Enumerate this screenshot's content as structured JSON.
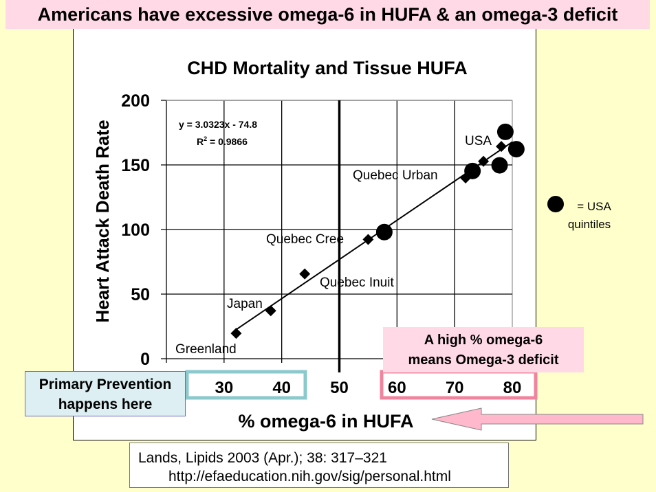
{
  "headline": "Americans have excessive omega-6 in HUFA & an omega-3 deficit",
  "chart_data": {
    "type": "scatter",
    "title": "CHD Mortality and Tissue HUFA",
    "xlabel": "% omega-6 in HUFA",
    "ylabel": "Heart Attack Death Rate",
    "xlim": [
      20,
      80
    ],
    "ylim": [
      0,
      200
    ],
    "x_ticks": [
      "30",
      "40",
      "50",
      "60",
      "70",
      "80"
    ],
    "y_ticks": [
      "0",
      "50",
      "100",
      "150",
      "200"
    ],
    "grid": true,
    "reference_line_x": 50,
    "series": [
      {
        "marker": "diamond",
        "color": "#000000",
        "points": [
          {
            "x": 32.1,
            "y": 19.6,
            "label": "Greenland"
          },
          {
            "x": 38.1,
            "y": 37.1,
            "label": "Japan"
          },
          {
            "x": 44.0,
            "y": 65.6,
            "label": "Quebec Inuit"
          },
          {
            "x": 55.0,
            "y": 92.3,
            "label": "Quebec Cree"
          },
          {
            "x": 71.9,
            "y": 139.9,
            "label": "Quebec Urban"
          },
          {
            "x": 75.0,
            "y": 152.8,
            "label": ""
          },
          {
            "x": 78.1,
            "y": 164.3,
            "label": "USA"
          }
        ]
      },
      {
        "name": "= USA quintiles",
        "marker": "circle",
        "color": "#000000",
        "points": [
          {
            "x": 57.8,
            "y": 98.0
          },
          {
            "x": 73.1,
            "y": 145.3
          },
          {
            "x": 77.8,
            "y": 149.7
          },
          {
            "x": 80.7,
            "y": 162.2
          },
          {
            "x": 78.8,
            "y": 175.6
          }
        ]
      }
    ],
    "trendline": {
      "slope": 3.0323,
      "intercept": -74.8,
      "x_range": [
        32,
        80
      ],
      "equation": "y = 3.0323x - 74.8",
      "r2_label": "R",
      "r2_sup": "2",
      "r2_value": " = 0.9866"
    },
    "legend": {
      "label_line1": "= USA",
      "label_line2": "quintiles",
      "placement": "right"
    }
  },
  "annotations": {
    "prevention_line1": "Primary Prevention",
    "prevention_line2": "happens here",
    "note_line1": "A high  % omega-6",
    "note_line2": "means Omega-3 deficit",
    "prevention_box_color": "#8CC9CC",
    "deficit_box_color": "#F0849F",
    "arrow_color": "#FFB8CC"
  },
  "citation": {
    "line1": "Lands,  Lipids 2003 (Apr.); 38: 317–321",
    "line2": "http://efaeducation.nih.gov/sig/personal.html"
  }
}
